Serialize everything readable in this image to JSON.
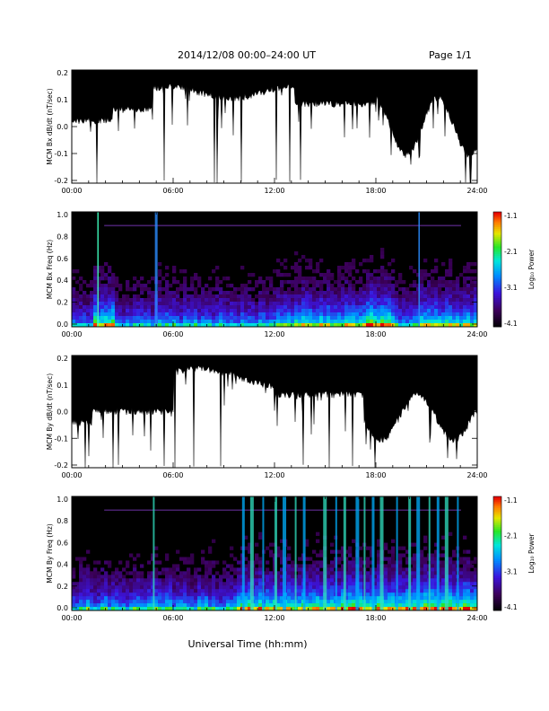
{
  "header": {
    "title": "2014/12/08   00:00–24:00 UT",
    "page": "Page 1/1"
  },
  "footer": {
    "xlabel": "Universal Time (hh:mm)"
  },
  "colorbar": {
    "label": "Log₁₀ Power",
    "ticks": [
      "-1.1",
      "-2.1",
      "-3.1",
      "-4.1"
    ],
    "range": [
      -4.1,
      -1.1
    ]
  },
  "chart_data": [
    {
      "type": "line",
      "title": "",
      "ylabel": "MCM Bx dB/dt (nT/sec)",
      "xlabel": "",
      "x_ticks": [
        "00:00",
        "06:00",
        "12:00",
        "18:00",
        "24:00"
      ],
      "y_ticks": [
        "0.2",
        "0.1",
        "0.0",
        "-0.1",
        "-0.2"
      ],
      "xlim": [
        "00:00",
        "24:00"
      ],
      "ylim": [
        -0.2,
        0.2
      ],
      "series": [
        {
          "values": "dense black trace spanning the full range"
        }
      ]
    },
    {
      "type": "heatmap",
      "title": "",
      "ylabel": "MCM Bx Freq (Hz)",
      "x_ticks": [
        "00:00",
        "06:00",
        "12:00",
        "18:00",
        "24:00"
      ],
      "y_ticks": [
        "1.0",
        "0.8",
        "0.6",
        "0.4",
        "0.2",
        "0.0"
      ],
      "xlim": [
        "00:00",
        "24:00"
      ],
      "ylim": [
        0.0,
        1.0
      ],
      "color_scale": "Log10 Power"
    },
    {
      "type": "line",
      "title": "",
      "ylabel": "MCM By dB/dt (nT/sec)",
      "x_ticks": [
        "00:00",
        "06:00",
        "12:00",
        "18:00",
        "24:00"
      ],
      "y_ticks": [
        "0.2",
        "0.1",
        "0.0",
        "-0.1",
        "-0.2"
      ],
      "xlim": [
        "00:00",
        "24:00"
      ],
      "ylim": [
        -0.2,
        0.2
      ],
      "series": [
        {
          "values": "dense black trace spanning the full range"
        }
      ]
    },
    {
      "type": "heatmap",
      "title": "",
      "ylabel": "MCM By Freq (Hz)",
      "x_ticks": [
        "00:00",
        "06:00",
        "12:00",
        "18:00",
        "24:00"
      ],
      "y_ticks": [
        "1.0",
        "0.8",
        "0.6",
        "0.4",
        "0.2",
        "0.0"
      ],
      "xlim": [
        "00:00",
        "24:00"
      ],
      "ylim": [
        0.0,
        1.0
      ],
      "color_scale": "Log10 Power"
    }
  ]
}
